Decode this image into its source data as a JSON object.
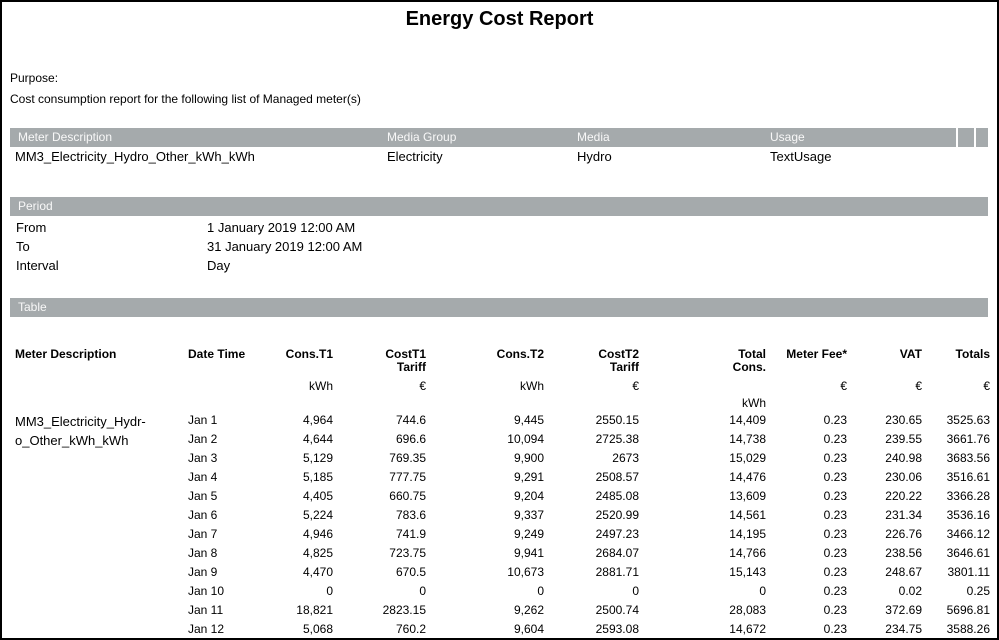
{
  "title": "Energy Cost Report",
  "purpose": {
    "label": "Purpose:",
    "text": "Cost consumption report for the following list of Managed meter(s)"
  },
  "meter_table": {
    "headers": {
      "meter_description": "Meter Description",
      "media_group": "Media Group",
      "media": "Media",
      "usage": "Usage"
    },
    "row": {
      "meter_description": "MM3_Electricity_Hydro_Other_kWh_kWh",
      "media_group": "Electricity",
      "media": "Hydro",
      "usage": "TextUsage"
    }
  },
  "period": {
    "header": "Period",
    "from_label": "From",
    "from_value": "1 January 2019 12:00 AM",
    "to_label": "To",
    "to_value": "31 January 2019 12:00 AM",
    "interval_label": "Interval",
    "interval_value": "Day"
  },
  "data_table": {
    "header": "Table",
    "columns": {
      "meter_description": "Meter Description",
      "date_time": "Date Time",
      "cons_t1": "Cons.T1",
      "cost_t1": "CostT1\nTariff",
      "cons_t2": "Cons.T2",
      "cost_t2": "CostT2\nTariff",
      "total_cons": "Total\nCons.",
      "meter_fee": "Meter Fee*",
      "vat": "VAT",
      "totals": "Totals"
    },
    "units": {
      "cons_t1": "kWh",
      "cost_t1": "€",
      "cons_t2": "kWh",
      "cost_t2": "€",
      "total_cons": "kWh",
      "meter_fee": "€",
      "vat": "€",
      "totals": "€"
    },
    "meter_name_wrapped": "MM3_Electricity_Hydr-\no_Other_kWh_kWh",
    "rows": [
      [
        "Jan 1",
        "4,964",
        "744.6",
        "9,445",
        "2550.15",
        "14,409",
        "0.23",
        "230.65",
        "3525.63"
      ],
      [
        "Jan 2",
        "4,644",
        "696.6",
        "10,094",
        "2725.38",
        "14,738",
        "0.23",
        "239.55",
        "3661.76"
      ],
      [
        "Jan 3",
        "5,129",
        "769.35",
        "9,900",
        "2673",
        "15,029",
        "0.23",
        "240.98",
        "3683.56"
      ],
      [
        "Jan 4",
        "5,185",
        "777.75",
        "9,291",
        "2508.57",
        "14,476",
        "0.23",
        "230.06",
        "3516.61"
      ],
      [
        "Jan 5",
        "4,405",
        "660.75",
        "9,204",
        "2485.08",
        "13,609",
        "0.23",
        "220.22",
        "3366.28"
      ],
      [
        "Jan 6",
        "5,224",
        "783.6",
        "9,337",
        "2520.99",
        "14,561",
        "0.23",
        "231.34",
        "3536.16"
      ],
      [
        "Jan 7",
        "4,946",
        "741.9",
        "9,249",
        "2497.23",
        "14,195",
        "0.23",
        "226.76",
        "3466.12"
      ],
      [
        "Jan 8",
        "4,825",
        "723.75",
        "9,941",
        "2684.07",
        "14,766",
        "0.23",
        "238.56",
        "3646.61"
      ],
      [
        "Jan 9",
        "4,470",
        "670.5",
        "10,673",
        "2881.71",
        "15,143",
        "0.23",
        "248.67",
        "3801.11"
      ],
      [
        "Jan 10",
        "0",
        "0",
        "0",
        "0",
        "0",
        "0.23",
        "0.02",
        "0.25"
      ],
      [
        "Jan 11",
        "18,821",
        "2823.15",
        "9,262",
        "2500.74",
        "28,083",
        "0.23",
        "372.69",
        "5696.81"
      ],
      [
        "Jan 12",
        "5,068",
        "760.2",
        "9,604",
        "2593.08",
        "14,672",
        "0.23",
        "234.75",
        "3588.26"
      ]
    ]
  },
  "colors": {
    "section_bar_bg": "#a5aaac",
    "section_bar_text": "#f8f8f8"
  }
}
